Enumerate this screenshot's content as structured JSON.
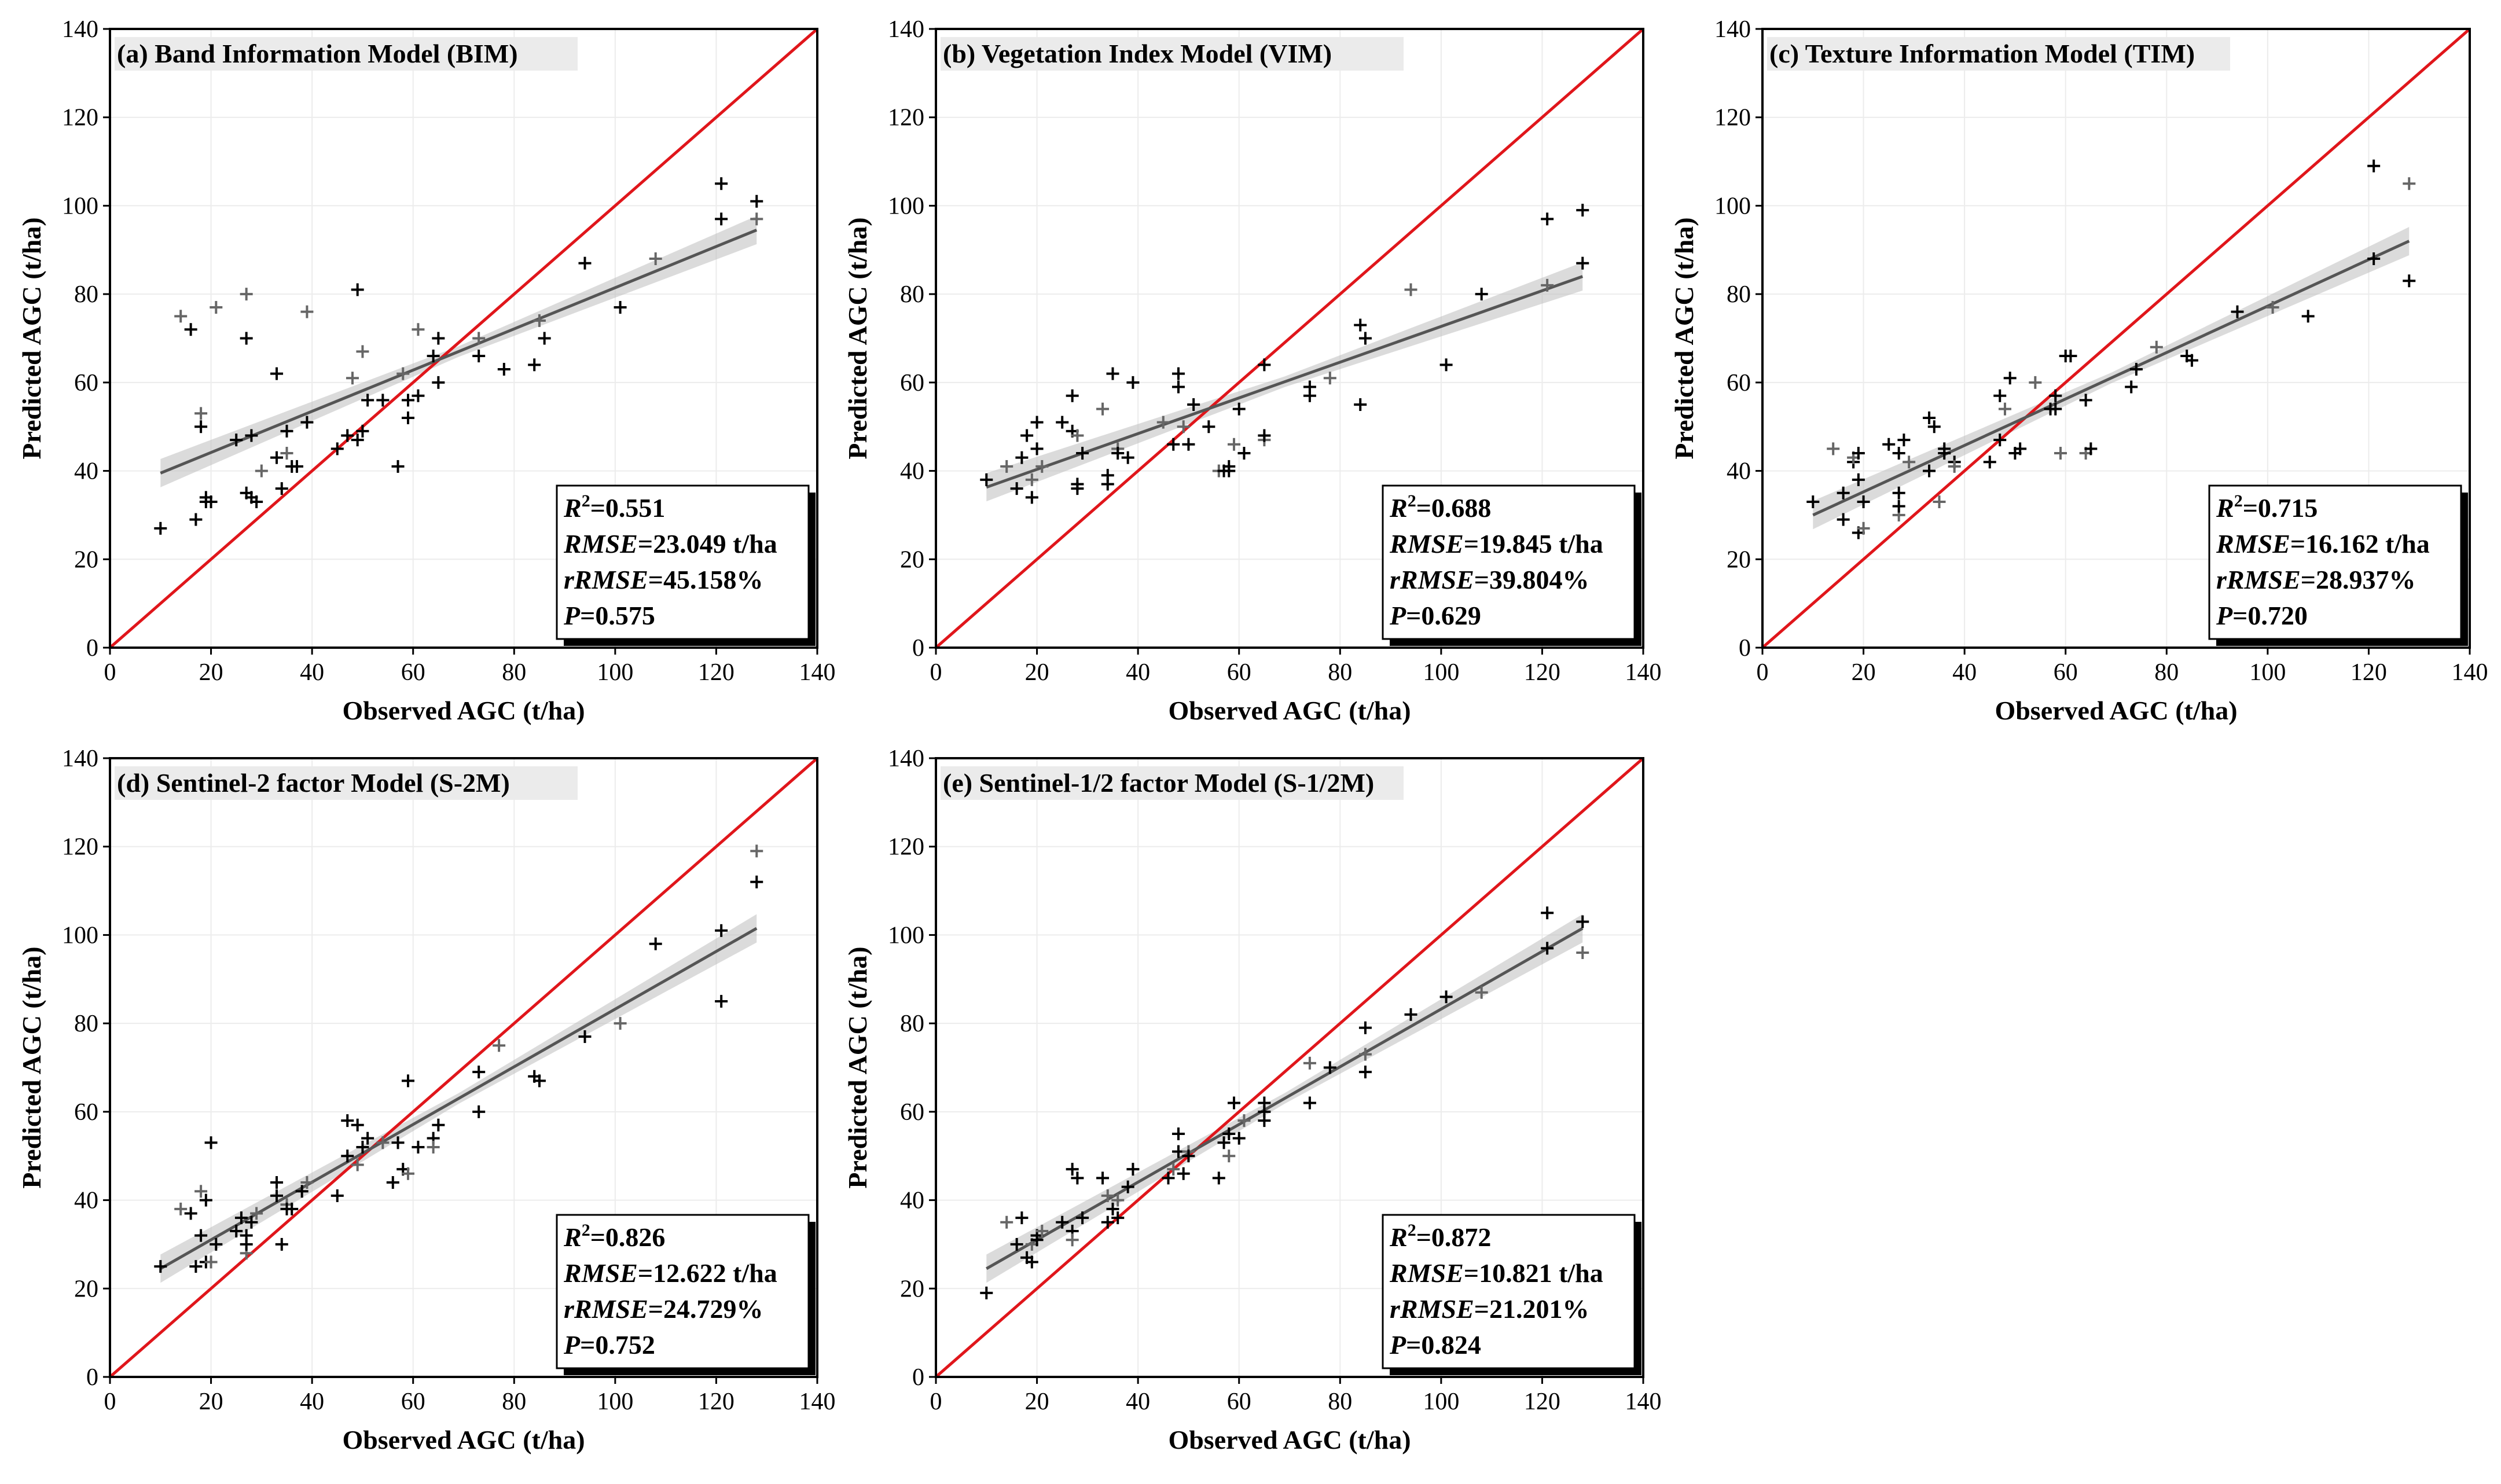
{
  "chart_data": [
    {
      "type": "scatter",
      "title": "(a) Band Information Model (BIM)",
      "xlabel": "Observed AGC (t/ha)",
      "ylabel": "Predicted AGC (t/ha)",
      "xlim": [
        0,
        140
      ],
      "ylim": [
        0,
        140
      ],
      "ticks": [
        "0",
        "20",
        "40",
        "60",
        "80",
        "100",
        "120",
        "140"
      ],
      "fit": {
        "x": [
          10,
          128
        ],
        "y": [
          39.5,
          94.5
        ]
      },
      "identity_line": "1:1",
      "stats": {
        "r2_label": "R",
        "r2_value": "=0.551",
        "rmse_label": "RMSE",
        "rmse_value": "=23.049 t/ha",
        "rrmse_label": "rRMSE",
        "rrmse_value": "=45.158%",
        "p_label": "P",
        "p_value": "=0.575"
      },
      "points": [
        [
          10,
          27
        ],
        [
          14,
          75
        ],
        [
          16,
          72
        ],
        [
          17,
          29
        ],
        [
          18,
          50
        ],
        [
          18,
          53
        ],
        [
          19,
          33
        ],
        [
          19,
          34
        ],
        [
          20,
          33
        ],
        [
          21,
          77
        ],
        [
          25,
          47
        ],
        [
          27,
          35
        ],
        [
          27,
          70
        ],
        [
          27,
          80
        ],
        [
          28,
          34
        ],
        [
          28,
          48
        ],
        [
          29,
          33
        ],
        [
          30,
          40
        ],
        [
          33,
          62
        ],
        [
          33,
          43
        ],
        [
          34,
          36
        ],
        [
          35,
          44
        ],
        [
          35,
          49
        ],
        [
          36,
          41
        ],
        [
          37,
          41
        ],
        [
          39,
          76
        ],
        [
          39,
          51
        ],
        [
          45,
          45
        ],
        [
          47,
          48
        ],
        [
          48,
          61
        ],
        [
          49,
          47
        ],
        [
          49,
          81
        ],
        [
          50,
          49
        ],
        [
          50,
          67
        ],
        [
          51,
          56
        ],
        [
          54,
          56
        ],
        [
          57,
          41
        ],
        [
          58,
          62
        ],
        [
          59,
          56
        ],
        [
          59,
          52
        ],
        [
          61,
          57
        ],
        [
          61,
          72
        ],
        [
          64,
          66
        ],
        [
          65,
          70
        ],
        [
          65,
          60
        ],
        [
          73,
          70
        ],
        [
          73,
          66
        ],
        [
          78,
          63
        ],
        [
          84,
          64
        ],
        [
          85,
          74
        ],
        [
          86,
          70
        ],
        [
          94,
          87
        ],
        [
          101,
          77
        ],
        [
          108,
          88
        ],
        [
          121,
          105
        ],
        [
          121,
          97
        ],
        [
          128,
          101
        ],
        [
          128,
          97
        ]
      ]
    },
    {
      "type": "scatter",
      "title": "(b) Vegetation Index Model (VIM)",
      "xlabel": "Observed AGC (t/ha)",
      "ylabel": "Predicted AGC (t/ha)",
      "xlim": [
        0,
        140
      ],
      "ylim": [
        0,
        140
      ],
      "ticks": [
        "0",
        "20",
        "40",
        "60",
        "80",
        "100",
        "120",
        "140"
      ],
      "fit": {
        "x": [
          10,
          128
        ],
        "y": [
          36.3,
          84
        ]
      },
      "identity_line": "1:1",
      "stats": {
        "r2_label": "R",
        "r2_value": "=0.688",
        "rmse_label": "RMSE",
        "rmse_value": "=19.845 t/ha",
        "rrmse_label": "rRMSE",
        "rrmse_value": "=39.804%",
        "p_label": "P",
        "p_value": "=0.629"
      },
      "points": [
        [
          10,
          38
        ],
        [
          14,
          41
        ],
        [
          16,
          36
        ],
        [
          17,
          43
        ],
        [
          18,
          48
        ],
        [
          19,
          38
        ],
        [
          19,
          34
        ],
        [
          20,
          51
        ],
        [
          20,
          45
        ],
        [
          21,
          41
        ],
        [
          25,
          51
        ],
        [
          27,
          57
        ],
        [
          27,
          49
        ],
        [
          28,
          48
        ],
        [
          28,
          37
        ],
        [
          28,
          36
        ],
        [
          29,
          44
        ],
        [
          33,
          54
        ],
        [
          34,
          39
        ],
        [
          34,
          37
        ],
        [
          35,
          62
        ],
        [
          36,
          45
        ],
        [
          36,
          44
        ],
        [
          38,
          43
        ],
        [
          39,
          60
        ],
        [
          45,
          51
        ],
        [
          47,
          46
        ],
        [
          48,
          59
        ],
        [
          48,
          62
        ],
        [
          49,
          50
        ],
        [
          50,
          46
        ],
        [
          51,
          55
        ],
        [
          54,
          50
        ],
        [
          56,
          40
        ],
        [
          57,
          40
        ],
        [
          58,
          40
        ],
        [
          58,
          41
        ],
        [
          59,
          46
        ],
        [
          60,
          54
        ],
        [
          61,
          44
        ],
        [
          65,
          64
        ],
        [
          65,
          47
        ],
        [
          65,
          48
        ],
        [
          74,
          59
        ],
        [
          74,
          57
        ],
        [
          78,
          61
        ],
        [
          84,
          73
        ],
        [
          84,
          55
        ],
        [
          85,
          70
        ],
        [
          94,
          81
        ],
        [
          101,
          64
        ],
        [
          108,
          80
        ],
        [
          121,
          97
        ],
        [
          121,
          82
        ],
        [
          128,
          99
        ],
        [
          128,
          87
        ]
      ]
    },
    {
      "type": "scatter",
      "title": "(c) Texture Information Model (TIM)",
      "xlabel": "Observed AGC (t/ha)",
      "ylabel": "Predicted AGC (t/ha)",
      "xlim": [
        0,
        140
      ],
      "ylim": [
        0,
        140
      ],
      "ticks": [
        "0",
        "20",
        "40",
        "60",
        "80",
        "100",
        "120",
        "140"
      ],
      "fit": {
        "x": [
          10,
          128
        ],
        "y": [
          30,
          92
        ]
      },
      "identity_line": "1:1",
      "stats": {
        "r2_label": "R",
        "r2_value": "=0.715",
        "rmse_label": "RMSE",
        "rmse_value": "=16.162 t/ha",
        "rrmse_label": "rRMSE",
        "rrmse_value": "=28.937%",
        "p_label": "P",
        "p_value": "=0.720"
      },
      "points": [
        [
          10,
          33
        ],
        [
          14,
          45
        ],
        [
          16,
          29
        ],
        [
          16,
          35
        ],
        [
          18,
          42
        ],
        [
          18,
          43
        ],
        [
          19,
          44
        ],
        [
          19,
          38
        ],
        [
          19,
          26
        ],
        [
          20,
          27
        ],
        [
          20,
          33
        ],
        [
          25,
          46
        ],
        [
          27,
          44
        ],
        [
          27,
          30
        ],
        [
          27,
          32
        ],
        [
          27,
          35
        ],
        [
          28,
          47
        ],
        [
          29,
          42
        ],
        [
          33,
          40
        ],
        [
          33,
          52
        ],
        [
          34,
          50
        ],
        [
          35,
          33
        ],
        [
          36,
          44
        ],
        [
          36,
          45
        ],
        [
          38,
          42
        ],
        [
          38,
          41
        ],
        [
          45,
          42
        ],
        [
          47,
          57
        ],
        [
          47,
          47
        ],
        [
          48,
          54
        ],
        [
          49,
          61
        ],
        [
          50,
          44
        ],
        [
          51,
          45
        ],
        [
          54,
          60
        ],
        [
          57,
          54
        ],
        [
          58,
          54
        ],
        [
          58,
          57
        ],
        [
          59,
          44
        ],
        [
          60,
          66
        ],
        [
          61,
          66
        ],
        [
          64,
          56
        ],
        [
          64,
          44
        ],
        [
          65,
          45
        ],
        [
          73,
          59
        ],
        [
          74,
          63
        ],
        [
          78,
          68
        ],
        [
          84,
          66
        ],
        [
          85,
          65
        ],
        [
          94,
          76
        ],
        [
          101,
          77
        ],
        [
          108,
          75
        ],
        [
          121,
          109
        ],
        [
          121,
          88
        ],
        [
          128,
          105
        ],
        [
          128,
          83
        ]
      ]
    },
    {
      "type": "scatter",
      "title": "(d) Sentinel-2 factor Model (S-2M)",
      "xlabel": "Observed AGC (t/ha)",
      "ylabel": "Predicted AGC (t/ha)",
      "xlim": [
        0,
        140
      ],
      "ylim": [
        0,
        140
      ],
      "ticks": [
        "0",
        "20",
        "40",
        "60",
        "80",
        "100",
        "120",
        "140"
      ],
      "fit": {
        "x": [
          10,
          128
        ],
        "y": [
          24.5,
          101.5
        ]
      },
      "identity_line": "1:1",
      "stats": {
        "r2_label": "R",
        "r2_value": "=0.826",
        "rmse_label": "RMSE",
        "rmse_value": "=12.622 t/ha",
        "rrmse_label": "rRMSE",
        "rrmse_value": "=24.729%",
        "p_label": "P",
        "p_value": "=0.752"
      },
      "points": [
        [
          10,
          25
        ],
        [
          14,
          38
        ],
        [
          16,
          37
        ],
        [
          17,
          25
        ],
        [
          18,
          32
        ],
        [
          18,
          42
        ],
        [
          19,
          26
        ],
        [
          19,
          40
        ],
        [
          20,
          53
        ],
        [
          20,
          26
        ],
        [
          21,
          30
        ],
        [
          25,
          33
        ],
        [
          26,
          36
        ],
        [
          27,
          28
        ],
        [
          27,
          30
        ],
        [
          27,
          32
        ],
        [
          28,
          35
        ],
        [
          29,
          37
        ],
        [
          33,
          44
        ],
        [
          33,
          41
        ],
        [
          34,
          30
        ],
        [
          35,
          39
        ],
        [
          35,
          38
        ],
        [
          36,
          38
        ],
        [
          38,
          42
        ],
        [
          39,
          44
        ],
        [
          45,
          41
        ],
        [
          47,
          58
        ],
        [
          47,
          50
        ],
        [
          49,
          48
        ],
        [
          49,
          57
        ],
        [
          50,
          52
        ],
        [
          51,
          54
        ],
        [
          54,
          53
        ],
        [
          56,
          44
        ],
        [
          57,
          53
        ],
        [
          58,
          47
        ],
        [
          59,
          46
        ],
        [
          59,
          67
        ],
        [
          61,
          52
        ],
        [
          64,
          54
        ],
        [
          64,
          52
        ],
        [
          65,
          57
        ],
        [
          73,
          69
        ],
        [
          73,
          60
        ],
        [
          77,
          75
        ],
        [
          84,
          68
        ],
        [
          85,
          67
        ],
        [
          94,
          77
        ],
        [
          101,
          80
        ],
        [
          108,
          98
        ],
        [
          121,
          101
        ],
        [
          121,
          85
        ],
        [
          128,
          119
        ],
        [
          128,
          112
        ]
      ]
    },
    {
      "type": "scatter",
      "title": "(e) Sentinel-1/2 factor Model (S-1/2M)",
      "xlabel": "Observed AGC (t/ha)",
      "ylabel": "Predicted AGC (t/ha)",
      "xlim": [
        0,
        140
      ],
      "ylim": [
        0,
        140
      ],
      "ticks": [
        "0",
        "20",
        "40",
        "60",
        "80",
        "100",
        "120",
        "140"
      ],
      "fit": {
        "x": [
          10,
          128
        ],
        "y": [
          24.5,
          101.5
        ]
      },
      "identity_line": "1:1",
      "stats": {
        "r2_label": "R",
        "r2_value": "=0.872",
        "rmse_label": "RMSE",
        "rmse_value": "=10.821 t/ha",
        "rrmse_label": "rRMSE",
        "rrmse_value": "=21.201%",
        "p_label": "P",
        "p_value": "=0.824"
      },
      "points": [
        [
          10,
          19
        ],
        [
          14,
          35
        ],
        [
          16,
          30
        ],
        [
          17,
          36
        ],
        [
          18,
          27
        ],
        [
          19,
          30
        ],
        [
          19,
          26
        ],
        [
          20,
          32
        ],
        [
          20,
          31
        ],
        [
          21,
          33
        ],
        [
          25,
          35
        ],
        [
          27,
          47
        ],
        [
          27,
          33
        ],
        [
          27,
          31
        ],
        [
          28,
          45
        ],
        [
          29,
          36
        ],
        [
          33,
          45
        ],
        [
          34,
          41
        ],
        [
          34,
          35
        ],
        [
          35,
          38
        ],
        [
          36,
          36
        ],
        [
          36,
          40
        ],
        [
          38,
          43
        ],
        [
          39,
          47
        ],
        [
          46,
          45
        ],
        [
          47,
          47
        ],
        [
          48,
          55
        ],
        [
          48,
          51
        ],
        [
          49,
          46
        ],
        [
          50,
          51
        ],
        [
          50,
          50
        ],
        [
          56,
          45
        ],
        [
          57,
          53
        ],
        [
          58,
          50
        ],
        [
          58,
          55
        ],
        [
          59,
          62
        ],
        [
          60,
          54
        ],
        [
          61,
          58
        ],
        [
          65,
          60
        ],
        [
          65,
          62
        ],
        [
          65,
          58
        ],
        [
          74,
          71
        ],
        [
          74,
          62
        ],
        [
          78,
          70
        ],
        [
          85,
          79
        ],
        [
          85,
          73
        ],
        [
          85,
          69
        ],
        [
          94,
          82
        ],
        [
          101,
          86
        ],
        [
          108,
          87
        ],
        [
          121,
          105
        ],
        [
          121,
          97
        ],
        [
          128,
          103
        ],
        [
          128,
          96
        ]
      ]
    }
  ]
}
